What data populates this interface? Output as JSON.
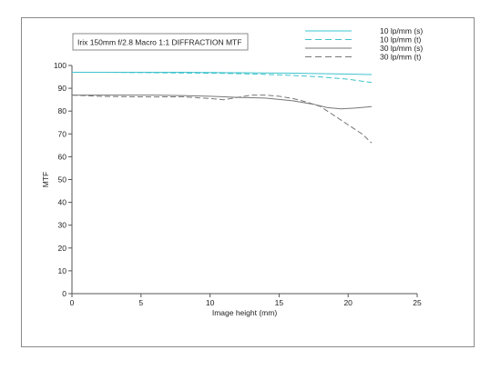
{
  "chart_data": {
    "type": "line",
    "title": "Irix 150mm f/2.8 Macro 1:1   DIFFRACTION MTF",
    "xlabel": "Image height (mm)",
    "ylabel": "MTF",
    "xlim": [
      0,
      25
    ],
    "ylim": [
      0,
      100
    ],
    "x_ticks": [
      "0",
      "5",
      "10",
      "15",
      "20",
      "25"
    ],
    "y_ticks": [
      "0",
      "10",
      "20",
      "30",
      "40",
      "50",
      "60",
      "70",
      "80",
      "90",
      "100"
    ],
    "grid": false,
    "legend_position": "top-right",
    "series": [
      {
        "name": "10 lp/mm (s)",
        "color": "#3ec3cc",
        "dash": "solid",
        "points": [
          [
            0,
            97
          ],
          [
            2,
            97
          ],
          [
            4,
            97
          ],
          [
            6,
            97
          ],
          [
            8,
            97
          ],
          [
            10,
            96.9
          ],
          [
            12,
            96.8
          ],
          [
            14,
            96.7
          ],
          [
            16,
            96.6
          ],
          [
            18,
            96.4
          ],
          [
            20,
            96.2
          ],
          [
            21.7,
            96
          ]
        ]
      },
      {
        "name": "10 lp/mm (t)",
        "color": "#3ec3cc",
        "dash": "dashed",
        "points": [
          [
            0,
            97
          ],
          [
            2,
            97
          ],
          [
            4,
            96.9
          ],
          [
            6,
            96.8
          ],
          [
            8,
            96.7
          ],
          [
            10,
            96.6
          ],
          [
            12,
            96.4
          ],
          [
            14,
            96.1
          ],
          [
            16,
            95.6
          ],
          [
            18,
            95
          ],
          [
            20,
            94
          ],
          [
            21.7,
            92.5
          ]
        ]
      },
      {
        "name": "30 lp/mm (s)",
        "color": "#777777",
        "dash": "solid",
        "points": [
          [
            0,
            87
          ],
          [
            2,
            87
          ],
          [
            4,
            87
          ],
          [
            6,
            87
          ],
          [
            8,
            86.8
          ],
          [
            10,
            86.5
          ],
          [
            12,
            86
          ],
          [
            14,
            85.7
          ],
          [
            16,
            84.5
          ],
          [
            17.5,
            83
          ],
          [
            18.5,
            81.5
          ],
          [
            19.5,
            81
          ],
          [
            20.5,
            81.3
          ],
          [
            21.7,
            82
          ]
        ]
      },
      {
        "name": "30 lp/mm (t)",
        "color": "#777777",
        "dash": "dashed",
        "points": [
          [
            0,
            87
          ],
          [
            2,
            86.5
          ],
          [
            4,
            86.3
          ],
          [
            6,
            86.2
          ],
          [
            8,
            86.3
          ],
          [
            10,
            85.5
          ],
          [
            11,
            85
          ],
          [
            12,
            86
          ],
          [
            13,
            87
          ],
          [
            14,
            87
          ],
          [
            15,
            86.5
          ],
          [
            16,
            85.5
          ],
          [
            17,
            84
          ],
          [
            18,
            82
          ],
          [
            19,
            78
          ],
          [
            20,
            74
          ],
          [
            21,
            70
          ],
          [
            21.7,
            66
          ]
        ]
      }
    ]
  }
}
